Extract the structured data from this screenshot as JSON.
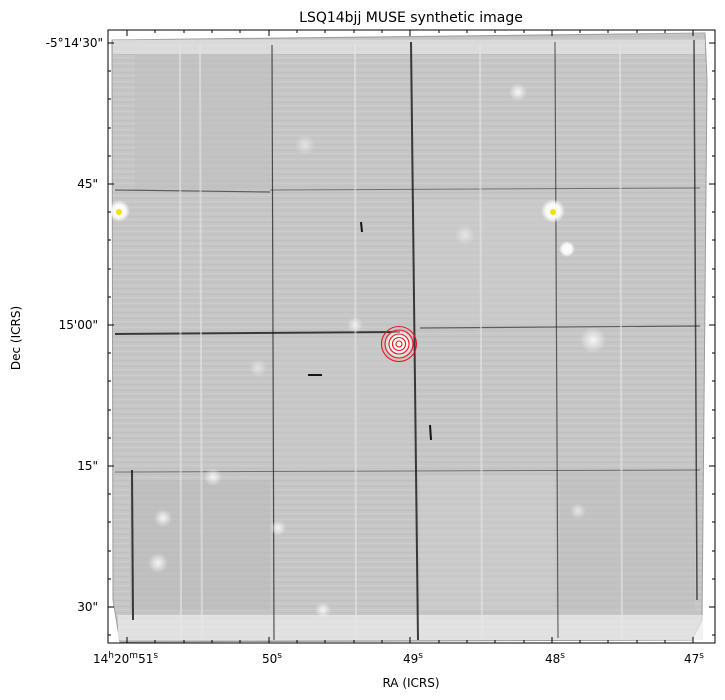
{
  "title": "LSQ14bjj MUSE synthetic image",
  "xlabel": "RA (ICRS)",
  "ylabel": "Dec (ICRS)",
  "x_ticks": [
    {
      "main": "14",
      "s1": "h",
      "mid": "20",
      "s2": "m",
      "tail": "51",
      "s3": "s"
    },
    {
      "main": "50",
      "s3": "s"
    },
    {
      "main": "49",
      "s3": "s"
    },
    {
      "main": "48",
      "s3": "s"
    },
    {
      "main": "47",
      "s3": "s"
    }
  ],
  "y_ticks": [
    "-5°14'30\"",
    "45\"",
    "15'00\"",
    "15\"",
    "30\""
  ],
  "colors": {
    "contour": "#e8141e",
    "marker": "#f2e205",
    "frame": "#000000"
  },
  "image": {
    "colormap": "gray",
    "background_gray": "#c4c4c4",
    "field": "MUSE white-light synthetic image",
    "contour_levels": 5,
    "markers": 2
  }
}
